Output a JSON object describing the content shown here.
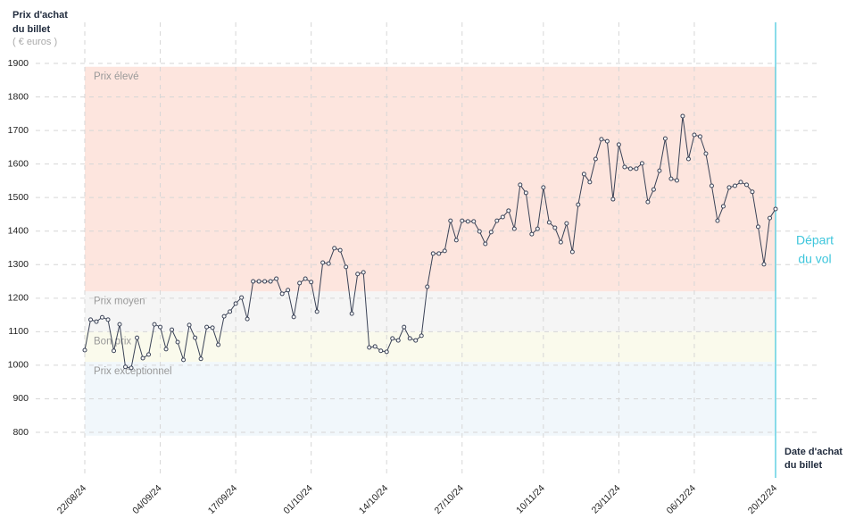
{
  "chart_data": {
    "type": "line",
    "y_title": [
      "Prix d'achat",
      "du billet"
    ],
    "y_unit": "( € euros )",
    "x_title": [
      "Date d'achat",
      "du billet"
    ],
    "annotation": [
      "Départ",
      "du vol"
    ],
    "color": "#3a4256",
    "marker_color": "#ffffff",
    "annotation_color": "#3ec6dc",
    "bands": [
      {
        "name": "Prix élevé",
        "from": 1220,
        "to": 1890,
        "color": "#fde5de"
      },
      {
        "name": "Prix moyen",
        "from": 1100,
        "to": 1220,
        "color": "#f5f5f5"
      },
      {
        "name": "Bon prix",
        "from": 1010,
        "to": 1100,
        "color": "#fafaec"
      },
      {
        "name": "Prix exceptionnel",
        "from": 790,
        "to": 1010,
        "color": "#f1f7fb"
      }
    ],
    "ylim": [
      800,
      1900
    ],
    "yticks": [
      800,
      900,
      1000,
      1100,
      1200,
      1300,
      1400,
      1500,
      1600,
      1700,
      1800,
      1900
    ],
    "grid": true,
    "categories": [
      "22/08/24",
      null,
      null,
      null,
      null,
      null,
      null,
      null,
      null,
      null,
      null,
      null,
      null,
      "04/09/24",
      null,
      null,
      null,
      null,
      null,
      null,
      null,
      null,
      null,
      null,
      null,
      null,
      "17/09/24",
      null,
      null,
      null,
      null,
      null,
      null,
      null,
      null,
      null,
      null,
      null,
      null,
      "01/10/24",
      null,
      null,
      null,
      null,
      null,
      null,
      null,
      null,
      null,
      null,
      null,
      null,
      "14/10/24",
      null,
      null,
      null,
      null,
      null,
      null,
      null,
      null,
      null,
      null,
      null,
      null,
      "27/10/24",
      null,
      null,
      null,
      null,
      null,
      null,
      null,
      null,
      null,
      null,
      null,
      null,
      null,
      "10/11/24",
      null,
      null,
      null,
      null,
      null,
      null,
      null,
      null,
      null,
      null,
      null,
      null,
      "23/11/24",
      null,
      null,
      null,
      null,
      null,
      null,
      null,
      null,
      null,
      null,
      null,
      null,
      "06/12/24",
      null,
      null,
      null,
      null,
      null,
      null,
      null,
      null,
      null,
      null,
      null,
      null,
      null,
      "20/12/24"
    ],
    "values": [
      1045,
      1136,
      1130,
      1143,
      1136,
      1043,
      1122,
      995,
      992,
      1082,
      1021,
      1032,
      1122,
      1114,
      1048,
      1106,
      1069,
      1016,
      1120,
      1082,
      1019,
      1114,
      1112,
      1061,
      1146,
      1160,
      1184,
      1202,
      1138,
      1250,
      1250,
      1250,
      1250,
      1258,
      1213,
      1224,
      1144,
      1245,
      1258,
      1248,
      1160,
      1306,
      1303,
      1349,
      1343,
      1293,
      1154,
      1272,
      1277,
      1053,
      1056,
      1043,
      1040,
      1080,
      1074,
      1114,
      1080,
      1074,
      1088,
      1234,
      1333,
      1333,
      1341,
      1431,
      1373,
      1431,
      1429,
      1429,
      1399,
      1362,
      1397,
      1431,
      1442,
      1461,
      1407,
      1538,
      1514,
      1391,
      1407,
      1530,
      1426,
      1410,
      1367,
      1423,
      1338,
      1479,
      1570,
      1546,
      1615,
      1674,
      1668,
      1495,
      1658,
      1591,
      1586,
      1586,
      1602,
      1487,
      1524,
      1580,
      1676,
      1556,
      1551,
      1743,
      1615,
      1687,
      1682,
      1631,
      1535,
      1431,
      1474,
      1530,
      1535,
      1546,
      1538,
      1517,
      1413,
      1301,
      1439,
      1466
    ]
  }
}
